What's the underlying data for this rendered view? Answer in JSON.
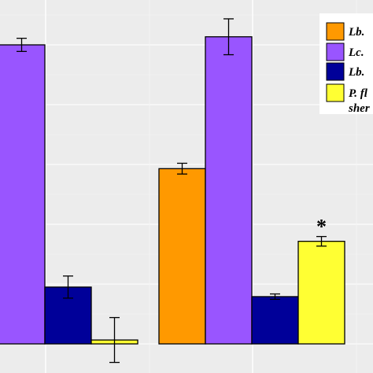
{
  "chart_data": {
    "type": "bar",
    "title": "",
    "xlabel": "",
    "ylabel": "",
    "ylim": [
      0,
      100
    ],
    "grid": true,
    "legend_position": "top-right",
    "groups": [
      {
        "bars": [
          {
            "series": 1,
            "value": 100,
            "err": 2.2
          },
          {
            "series": 2,
            "value": 19,
            "err": 3.7
          },
          {
            "series": 3,
            "value": 1.3,
            "err": 7.5
          }
        ]
      },
      {
        "bars": [
          {
            "series": 0,
            "value": 58.6,
            "err": 1.8
          },
          {
            "series": 1,
            "value": 102.7,
            "err": 6.0
          },
          {
            "series": 2,
            "value": 15.8,
            "err": 0.9
          },
          {
            "series": 3,
            "value": 34.3,
            "err": 1.6
          }
        ]
      }
    ],
    "series": [
      {
        "name": "Lb.",
        "color": "#ff9900"
      },
      {
        "name": "Lc.",
        "color": "#9955ff"
      },
      {
        "name": "Lb.",
        "color": "#000099"
      },
      {
        "name": "P. fl",
        "name_line2": "sher",
        "color": "#ffff33"
      }
    ],
    "annotations": [
      {
        "text": "*",
        "group": 1,
        "bar": 3
      }
    ]
  }
}
